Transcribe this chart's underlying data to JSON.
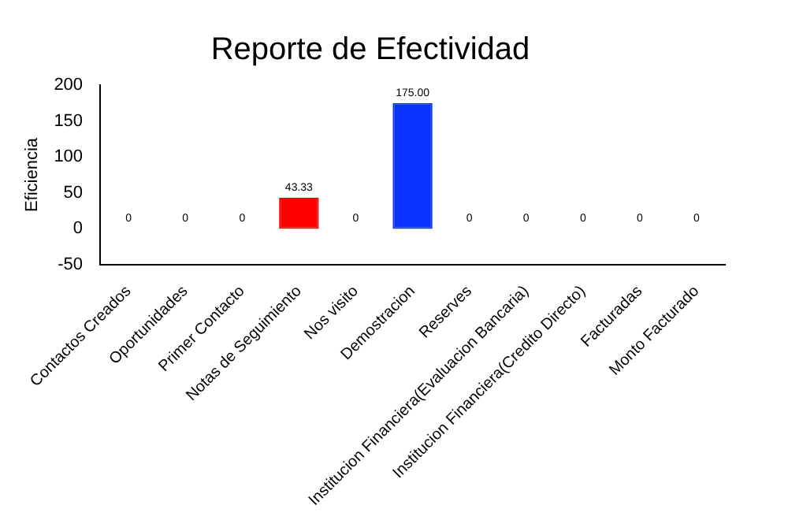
{
  "chart_data": {
    "type": "bar",
    "title": "Reporte de Efectividad",
    "ylabel": "Eficiencia",
    "categories": [
      "Contactos Creados",
      "Oportunidades",
      "Primer Contacto",
      "Notas de Seguimiento",
      "Nos visito",
      "Demostracion",
      "Reserves",
      "Institucion Financiera(Evaluacion Bancaria)",
      "Institucion Financiera(Credito Directo)",
      "Facturadas",
      "Monto Facturado"
    ],
    "values": [
      0,
      0,
      0,
      43.33,
      0,
      175,
      0,
      0,
      0,
      0,
      0
    ],
    "colors": [
      "#ff0000",
      "#ff0000",
      "#ff0000",
      "#ff0000",
      "#ff0000",
      "#0a32ff",
      "#ff0000",
      "#ff0000",
      "#ff0000",
      "#ff0000",
      "#ff0000"
    ],
    "value_labels": [
      "0",
      "0",
      "0",
      "43.33",
      "0",
      "175.00",
      "0",
      "0",
      "0",
      "0",
      "0"
    ],
    "ylim": [
      -50,
      200
    ],
    "yticks": [
      -50,
      0,
      50,
      100,
      150,
      200
    ],
    "grid": false,
    "legend": false
  }
}
